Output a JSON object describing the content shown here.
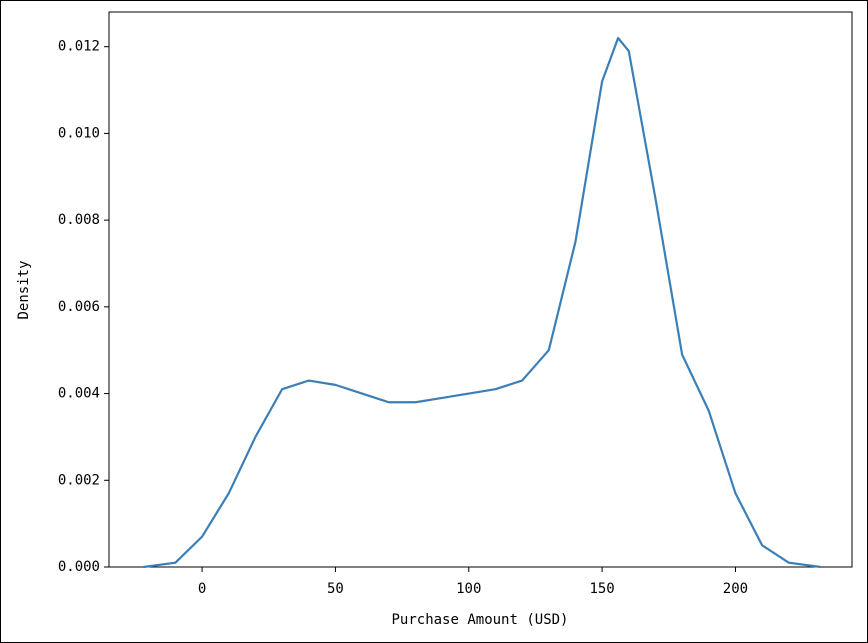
{
  "chart_data": {
    "type": "line",
    "x_label": "Purchase Amount (USD)",
    "y_label": "Density",
    "x": [
      -22,
      -10,
      0,
      10,
      20,
      30,
      40,
      50,
      60,
      70,
      80,
      90,
      100,
      110,
      120,
      130,
      140,
      150,
      156,
      160,
      170,
      180,
      190,
      200,
      210,
      220,
      232
    ],
    "series": [
      {
        "name": "Density",
        "color": "#3a7fb8",
        "values": [
          0.0,
          0.0001,
          0.0007,
          0.0017,
          0.003,
          0.0041,
          0.0043,
          0.0042,
          0.004,
          0.0038,
          0.0038,
          0.0039,
          0.004,
          0.0041,
          0.0043,
          0.005,
          0.0075,
          0.0112,
          0.0122,
          0.0119,
          0.0085,
          0.0049,
          0.0036,
          0.0017,
          0.0005,
          0.0001,
          0.0
        ]
      }
    ],
    "xlim": [
      -34.9,
      243.7
    ],
    "ylim": [
      0,
      0.0128
    ],
    "xticks": [
      0,
      50,
      100,
      150,
      200
    ],
    "yticks": [
      {
        "value": 0,
        "label": "0.000"
      },
      {
        "value": 0.002,
        "label": "0.002"
      },
      {
        "value": 0.004,
        "label": "0.004"
      },
      {
        "value": 0.006,
        "label": "0.006"
      },
      {
        "value": 0.008,
        "label": "0.008"
      },
      {
        "value": 0.01,
        "label": "0.010"
      },
      {
        "value": 0.012,
        "label": "0.012"
      }
    ]
  }
}
